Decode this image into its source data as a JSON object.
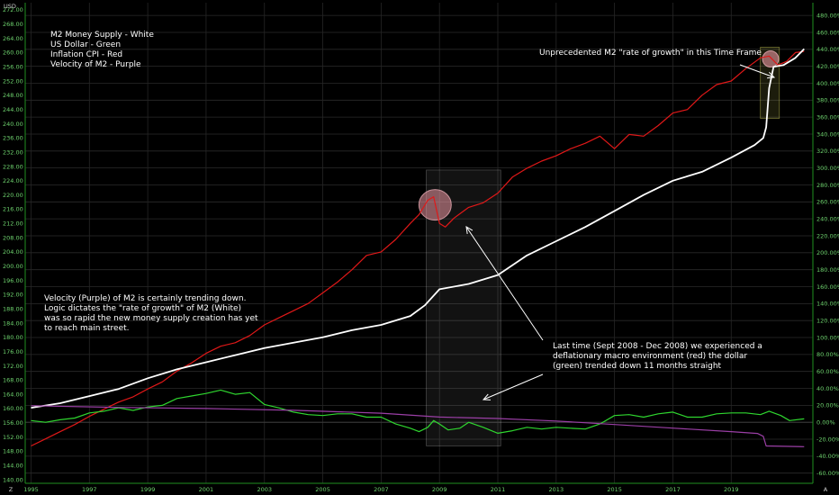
{
  "chart_data": {
    "type": "line",
    "currency_label": "USD",
    "left_axis": {
      "ylim": [
        139,
        274
      ],
      "ticks": [
        140,
        144,
        148,
        152,
        156,
        160,
        164,
        168,
        172,
        176,
        180,
        184,
        188,
        192,
        196,
        200,
        204,
        208,
        212,
        216,
        220,
        224,
        228,
        232,
        236,
        240,
        244,
        248,
        252,
        256,
        260,
        264,
        268,
        272
      ]
    },
    "right_axis": {
      "ylim": [
        -72,
        495
      ],
      "ticks": [
        -60,
        -40,
        -20,
        0,
        20,
        40,
        60,
        80,
        100,
        120,
        140,
        160,
        180,
        200,
        220,
        240,
        260,
        280,
        300,
        320,
        340,
        360,
        380,
        400,
        420,
        440,
        460,
        480
      ]
    },
    "xlim": [
      1994.8,
      2021.8
    ],
    "x_ticks": [
      1995,
      1997,
      1999,
      2001,
      2003,
      2005,
      2007,
      2009,
      2011,
      2013,
      2015,
      2017,
      2019
    ],
    "series": [
      {
        "name": "Inflation CPI",
        "color": "#e01818",
        "axis": "left",
        "points": [
          [
            1995,
            149.5
          ],
          [
            1995.5,
            151.5
          ],
          [
            1996,
            153.5
          ],
          [
            1996.5,
            155.5
          ],
          [
            1997,
            157.8
          ],
          [
            1997.5,
            159.8
          ],
          [
            1998,
            161.8
          ],
          [
            1998.5,
            163.3
          ],
          [
            1999,
            165.5
          ],
          [
            1999.5,
            167.5
          ],
          [
            2000,
            170.5
          ],
          [
            2000.5,
            172.8
          ],
          [
            2001,
            175.5
          ],
          [
            2001.5,
            177.5
          ],
          [
            2002,
            178.5
          ],
          [
            2002.5,
            180.5
          ],
          [
            2003,
            183.5
          ],
          [
            2003.5,
            185.5
          ],
          [
            2004,
            187.5
          ],
          [
            2004.5,
            189.5
          ],
          [
            2005,
            192.5
          ],
          [
            2005.5,
            195.5
          ],
          [
            2006,
            199
          ],
          [
            2006.5,
            203
          ],
          [
            2007,
            204
          ],
          [
            2007.5,
            207.5
          ],
          [
            2008,
            212
          ],
          [
            2008.3,
            214.5
          ],
          [
            2008.6,
            218.5
          ],
          [
            2008.8,
            219.5
          ],
          [
            2009.0,
            212
          ],
          [
            2009.2,
            211
          ],
          [
            2009.5,
            213.5
          ],
          [
            2010,
            216.5
          ],
          [
            2010.5,
            217.8
          ],
          [
            2011,
            220.5
          ],
          [
            2011.5,
            225
          ],
          [
            2012,
            227.5
          ],
          [
            2012.5,
            229.5
          ],
          [
            2013,
            231
          ],
          [
            2013.5,
            233
          ],
          [
            2014,
            234.5
          ],
          [
            2014.5,
            236.5
          ],
          [
            2015,
            233
          ],
          [
            2015.5,
            237
          ],
          [
            2016,
            236.5
          ],
          [
            2016.5,
            239.5
          ],
          [
            2017,
            243
          ],
          [
            2017.5,
            244
          ],
          [
            2018,
            248
          ],
          [
            2018.5,
            251
          ],
          [
            2019,
            252
          ],
          [
            2019.5,
            255.5
          ],
          [
            2020,
            258.5
          ],
          [
            2020.3,
            259
          ],
          [
            2020.6,
            256.5
          ],
          [
            2020.9,
            257.5
          ],
          [
            2021.2,
            260
          ],
          [
            2021.5,
            260.3
          ]
        ]
      },
      {
        "name": "M2 Money Supply",
        "color": "#ffffff",
        "axis": "left",
        "points": [
          [
            1995,
            160.2
          ],
          [
            1996,
            161.5
          ],
          [
            1997,
            163.5
          ],
          [
            1998,
            165.5
          ],
          [
            1999,
            168.5
          ],
          [
            2000,
            171
          ],
          [
            2001,
            173
          ],
          [
            2002,
            175
          ],
          [
            2003,
            177
          ],
          [
            2004,
            178.5
          ],
          [
            2005,
            180
          ],
          [
            2006,
            182
          ],
          [
            2007,
            183.5
          ],
          [
            2008,
            186
          ],
          [
            2008.5,
            189
          ],
          [
            2009,
            193.5
          ],
          [
            2010,
            195
          ],
          [
            2011,
            197.5
          ],
          [
            2012,
            203
          ],
          [
            2013,
            207
          ],
          [
            2014,
            211
          ],
          [
            2015,
            215.5
          ],
          [
            2016,
            220
          ],
          [
            2017,
            224
          ],
          [
            2018,
            226.5
          ],
          [
            2019,
            230.5
          ],
          [
            2019.8,
            234
          ],
          [
            2020.1,
            236
          ],
          [
            2020.2,
            239
          ],
          [
            2020.3,
            250
          ],
          [
            2020.45,
            256
          ],
          [
            2020.8,
            256.5
          ],
          [
            2021.2,
            258.5
          ],
          [
            2021.5,
            261
          ]
        ]
      },
      {
        "name": "US Dollar",
        "color": "#2fd62f",
        "axis": "right",
        "points": [
          [
            1995,
            2
          ],
          [
            1995.5,
            0
          ],
          [
            1996,
            3
          ],
          [
            1996.5,
            5
          ],
          [
            1997,
            11
          ],
          [
            1997.5,
            13
          ],
          [
            1998,
            17
          ],
          [
            1998.5,
            14
          ],
          [
            1999,
            18
          ],
          [
            1999.5,
            20
          ],
          [
            2000,
            28
          ],
          [
            2000.5,
            31
          ],
          [
            2001,
            34
          ],
          [
            2001.5,
            38
          ],
          [
            2002,
            33
          ],
          [
            2002.5,
            35
          ],
          [
            2003,
            21
          ],
          [
            2003.5,
            17
          ],
          [
            2004,
            12
          ],
          [
            2004.5,
            9
          ],
          [
            2005,
            8
          ],
          [
            2005.5,
            10
          ],
          [
            2006,
            10
          ],
          [
            2006.5,
            6
          ],
          [
            2007,
            6
          ],
          [
            2007.5,
            -2
          ],
          [
            2008,
            -7
          ],
          [
            2008.3,
            -11
          ],
          [
            2008.6,
            -6
          ],
          [
            2008.8,
            2
          ],
          [
            2009,
            -2
          ],
          [
            2009.3,
            -9
          ],
          [
            2009.7,
            -7
          ],
          [
            2010,
            0
          ],
          [
            2010.5,
            -6
          ],
          [
            2011,
            -13
          ],
          [
            2011.5,
            -10
          ],
          [
            2012,
            -6
          ],
          [
            2012.5,
            -8
          ],
          [
            2013,
            -6
          ],
          [
            2013.5,
            -7
          ],
          [
            2014,
            -8
          ],
          [
            2014.5,
            -2
          ],
          [
            2015,
            8
          ],
          [
            2015.5,
            9
          ],
          [
            2016,
            6
          ],
          [
            2016.5,
            10
          ],
          [
            2017,
            12
          ],
          [
            2017.5,
            6
          ],
          [
            2018,
            6
          ],
          [
            2018.5,
            10
          ],
          [
            2019,
            11
          ],
          [
            2019.5,
            11
          ],
          [
            2020,
            9
          ],
          [
            2020.3,
            13
          ],
          [
            2020.7,
            8
          ],
          [
            2021,
            2
          ],
          [
            2021.5,
            4
          ]
        ]
      },
      {
        "name": "Velocity of M2",
        "color": "#9b3fa6",
        "axis": "left",
        "points": [
          [
            1995,
            160.8
          ],
          [
            1998,
            160.3
          ],
          [
            2001,
            160
          ],
          [
            2004,
            159.5
          ],
          [
            2007,
            158.7
          ],
          [
            2009,
            157.6
          ],
          [
            2011,
            157.2
          ],
          [
            2013,
            156.5
          ],
          [
            2015,
            155.5
          ],
          [
            2017,
            154.5
          ],
          [
            2019,
            153.5
          ],
          [
            2019.9,
            153
          ],
          [
            2020.1,
            152.2
          ],
          [
            2020.2,
            149.5
          ],
          [
            2021.5,
            149.3
          ]
        ]
      }
    ]
  },
  "legend_lines": [
    "M2 Money Supply - White",
    "US Dollar - Green",
    "Inflation CPI - Red",
    "Velocity of M2 - Purple"
  ],
  "annotations": {
    "velocity_note": [
      "Velocity (Purple) of M2 is certainly trending down.",
      "Logic dictates the \"rate of growth\" of M2 (White)",
      "was so rapid the new money supply creation has yet",
      "to reach main street."
    ],
    "last_time_note": [
      "Last time (Sept 2008 - Dec 2008) we experienced a",
      "deflationary macro environment (red) the dollar",
      "(green) trended down 11 months straight"
    ],
    "unprecedented_note": "Unprecedented M2 \"rate of growth\" in this Time Frame"
  },
  "corner_labels": {
    "bottom_left": "Z",
    "bottom_right": "A"
  }
}
